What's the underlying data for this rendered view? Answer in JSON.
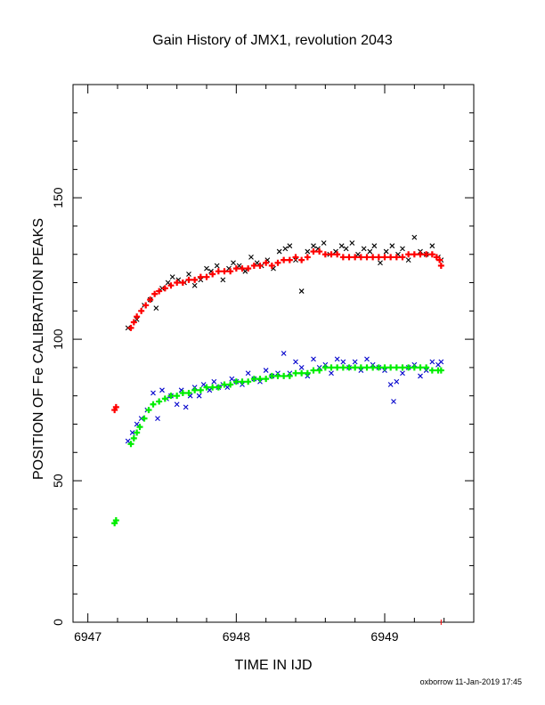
{
  "chart_data": {
    "type": "scatter",
    "title": "Gain History of JMX1, revolution 2043",
    "xlabel": "TIME IN IJD",
    "ylabel": "POSITION OF Fe CALIBRATION PEAKS",
    "xlim": [
      6946.9,
      6949.6
    ],
    "ylim": [
      0,
      190
    ],
    "xticks": [
      "6947",
      "6948",
      "6949"
    ],
    "yticks": [
      "0",
      "50",
      "100",
      "150"
    ],
    "grid": false,
    "legend": "none",
    "series": [
      {
        "color": "#000000",
        "marker": "x",
        "x": [
          6947.27,
          6947.33,
          6947.38,
          6947.42,
          6947.46,
          6947.5,
          6947.54,
          6947.57,
          6947.61,
          6947.65,
          6947.68,
          6947.72,
          6947.76,
          6947.8,
          6947.83,
          6947.87,
          6947.91,
          6947.95,
          6947.98,
          6948.02,
          6948.06,
          6948.1,
          6948.14,
          6948.17,
          6948.21,
          6948.25,
          6948.29,
          6948.33,
          6948.36,
          6948.4,
          6948.44,
          6948.48,
          6948.52,
          6948.55,
          6948.59,
          6948.63,
          6948.67,
          6948.71,
          6948.74,
          6948.78,
          6948.82,
          6948.86,
          6948.9,
          6948.93,
          6948.97,
          6949.01,
          6949.05,
          6949.09,
          6949.12,
          6949.16,
          6949.2,
          6949.24,
          6949.28,
          6949.32,
          6949.36,
          6949.38
        ],
        "values": [
          104,
          107,
          112,
          114,
          111,
          118,
          120,
          122,
          121,
          120,
          123,
          119,
          121,
          125,
          124,
          126,
          121,
          125,
          127,
          126,
          124,
          129,
          127,
          126,
          128,
          125,
          131,
          132,
          133,
          128,
          117,
          131,
          133,
          132,
          134,
          130,
          131,
          133,
          132,
          134,
          130,
          132,
          131,
          133,
          127,
          131,
          133,
          130,
          132,
          128,
          136,
          131,
          130,
          133,
          129,
          128
        ]
      },
      {
        "color": "#ff0000",
        "marker": "+",
        "x": [
          6947.18,
          6947.19,
          6947.29,
          6947.31,
          6947.33,
          6947.36,
          6947.39,
          6947.42,
          6947.45,
          6947.48,
          6947.52,
          6947.56,
          6947.6,
          6947.64,
          6947.68,
          6947.72,
          6947.76,
          6947.8,
          6947.84,
          6947.88,
          6947.92,
          6947.96,
          6948.0,
          6948.04,
          6948.08,
          6948.12,
          6948.16,
          6948.2,
          6948.24,
          6948.28,
          6948.32,
          6948.36,
          6948.4,
          6948.44,
          6948.48,
          6948.52,
          6948.56,
          6948.6,
          6948.64,
          6948.68,
          6948.72,
          6948.76,
          6948.8,
          6948.84,
          6948.88,
          6948.92,
          6948.96,
          6949.0,
          6949.04,
          6949.08,
          6949.12,
          6949.16,
          6949.2,
          6949.24,
          6949.28,
          6949.32,
          6949.35,
          6949.37,
          6949.38
        ],
        "values": [
          75,
          76,
          104,
          106,
          108,
          110,
          112,
          114,
          116,
          117,
          118,
          119,
          120,
          120,
          121,
          121,
          122,
          122,
          123,
          124,
          124,
          124,
          125,
          125,
          125,
          126,
          126,
          127,
          126,
          127,
          128,
          128,
          129,
          128,
          129,
          131,
          131,
          130,
          130,
          130,
          129,
          129,
          129,
          129,
          129,
          129,
          129,
          129,
          129,
          129,
          129,
          130,
          130,
          130,
          130,
          130,
          129,
          128,
          126
        ]
      },
      {
        "color": "#0000cc",
        "marker": "x",
        "x": [
          6947.27,
          6947.3,
          6947.33,
          6947.36,
          6947.4,
          6947.44,
          6947.47,
          6947.5,
          6947.53,
          6947.56,
          6947.6,
          6947.63,
          6947.66,
          6947.69,
          6947.72,
          6947.75,
          6947.78,
          6947.82,
          6947.85,
          6947.88,
          6947.91,
          6947.94,
          6947.97,
          6948.0,
          6948.04,
          6948.08,
          6948.12,
          6948.16,
          6948.2,
          6948.24,
          6948.28,
          6948.32,
          6948.36,
          6948.4,
          6948.44,
          6948.48,
          6948.52,
          6948.56,
          6948.6,
          6948.64,
          6948.68,
          6948.72,
          6948.76,
          6948.8,
          6948.84,
          6948.88,
          6948.92,
          6948.96,
          6949.0,
          6949.04,
          6949.06,
          6949.08,
          6949.12,
          6949.16,
          6949.2,
          6949.24,
          6949.28,
          6949.32,
          6949.36,
          6949.38
        ],
        "values": [
          64,
          67,
          70,
          72,
          75,
          81,
          72,
          82,
          79,
          80,
          77,
          82,
          76,
          80,
          83,
          80,
          84,
          82,
          85,
          83,
          84,
          83,
          86,
          85,
          84,
          88,
          86,
          85,
          89,
          87,
          88,
          95,
          88,
          92,
          90,
          87,
          93,
          90,
          91,
          88,
          93,
          92,
          90,
          92,
          89,
          93,
          91,
          90,
          89,
          84,
          78,
          85,
          88,
          90,
          91,
          87,
          89,
          92,
          91,
          92
        ]
      },
      {
        "color": "#00ee00",
        "marker": "+",
        "x": [
          6947.18,
          6947.19,
          6947.29,
          6947.31,
          6947.33,
          6947.35,
          6947.38,
          6947.41,
          6947.44,
          6947.48,
          6947.52,
          6947.56,
          6947.6,
          6947.64,
          6947.68,
          6947.72,
          6947.76,
          6947.8,
          6947.84,
          6947.88,
          6947.92,
          6947.96,
          6948.0,
          6948.04,
          6948.08,
          6948.12,
          6948.16,
          6948.2,
          6948.24,
          6948.28,
          6948.32,
          6948.36,
          6948.4,
          6948.44,
          6948.48,
          6948.52,
          6948.56,
          6948.6,
          6948.64,
          6948.68,
          6948.72,
          6948.76,
          6948.8,
          6948.84,
          6948.88,
          6948.92,
          6948.96,
          6949.0,
          6949.04,
          6949.08,
          6949.12,
          6949.16,
          6949.2,
          6949.24,
          6949.28,
          6949.32,
          6949.36,
          6949.38
        ],
        "values": [
          35,
          36,
          63,
          65,
          67,
          69,
          72,
          75,
          77,
          78,
          79,
          80,
          80,
          81,
          81,
          82,
          82,
          83,
          83,
          83,
          84,
          84,
          85,
          85,
          85,
          86,
          86,
          86,
          87,
          87,
          87,
          87,
          88,
          88,
          88,
          89,
          89,
          90,
          90,
          90,
          90,
          90,
          90,
          90,
          90,
          90,
          90,
          90,
          90,
          90,
          90,
          90,
          90,
          90,
          90,
          89,
          89,
          89
        ]
      }
    ]
  },
  "footer": "oxborrow 11-Jan-2019 17:45"
}
